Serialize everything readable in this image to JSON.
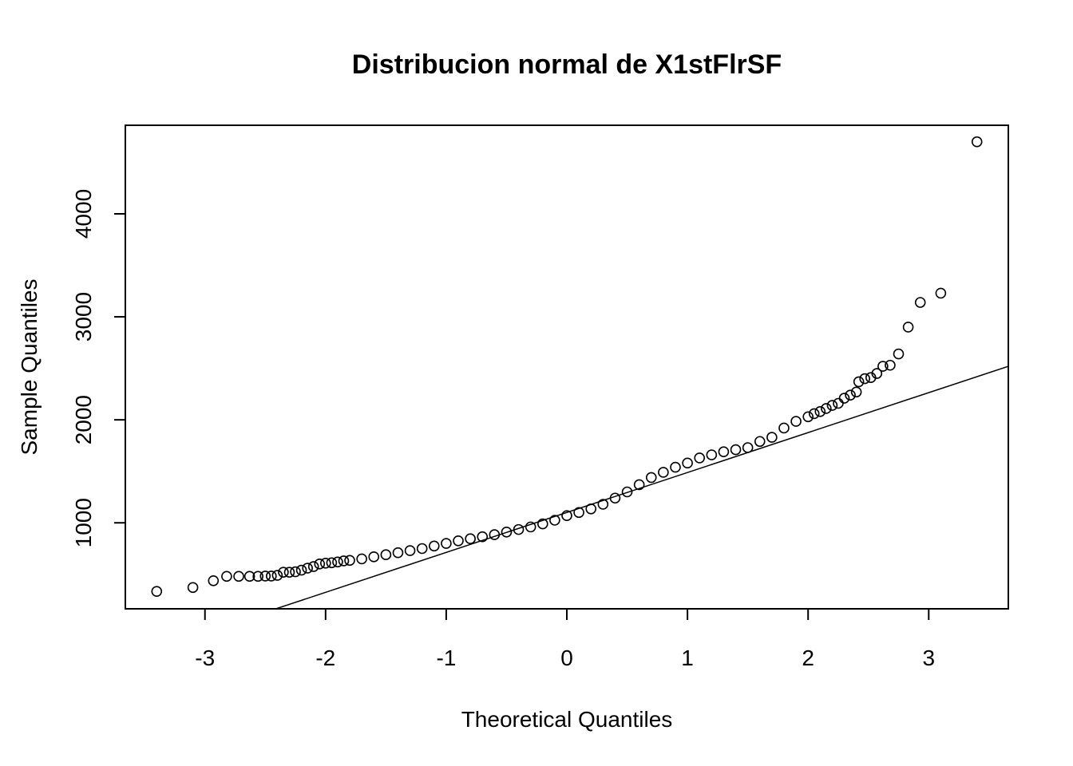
{
  "chart_data": {
    "type": "scatter",
    "title": "Distribucion normal de X1stFlrSF",
    "xlabel": "Theoretical Quantiles",
    "ylabel": "Sample Quantiles",
    "xlim": [
      -3.66,
      3.66
    ],
    "ylim": [
      165,
      4860
    ],
    "x_ticks": [
      -3,
      -2,
      -1,
      0,
      1,
      2,
      3
    ],
    "y_ticks": [
      1000,
      2000,
      3000,
      4000
    ],
    "grid": false,
    "legend": "none",
    "reference_line": {
      "from": [
        -2.58,
        100
      ],
      "to": [
        3.66,
        2520
      ]
    },
    "series": [
      {
        "points": [
          [
            -3.4,
            334
          ],
          [
            -3.1,
            372
          ],
          [
            -2.93,
            438
          ],
          [
            -2.82,
            480
          ],
          [
            -2.72,
            480
          ],
          [
            -2.63,
            480
          ],
          [
            -2.56,
            480
          ],
          [
            -2.5,
            483
          ],
          [
            -2.45,
            483
          ],
          [
            -2.4,
            490
          ],
          [
            -2.35,
            520
          ],
          [
            -2.3,
            520
          ],
          [
            -2.25,
            525
          ],
          [
            -2.2,
            540
          ],
          [
            -2.15,
            560
          ],
          [
            -2.1,
            575
          ],
          [
            -2.05,
            600
          ],
          [
            -2.0,
            608
          ],
          [
            -1.95,
            612
          ],
          [
            -1.9,
            620
          ],
          [
            -1.85,
            630
          ],
          [
            -1.8,
            635
          ],
          [
            -1.7,
            650
          ],
          [
            -1.6,
            670
          ],
          [
            -1.5,
            690
          ],
          [
            -1.4,
            710
          ],
          [
            -1.3,
            730
          ],
          [
            -1.2,
            750
          ],
          [
            -1.1,
            775
          ],
          [
            -1.0,
            800
          ],
          [
            -0.9,
            825
          ],
          [
            -0.8,
            845
          ],
          [
            -0.7,
            865
          ],
          [
            -0.6,
            885
          ],
          [
            -0.5,
            910
          ],
          [
            -0.4,
            935
          ],
          [
            -0.3,
            960
          ],
          [
            -0.2,
            990
          ],
          [
            -0.1,
            1025
          ],
          [
            0.0,
            1070
          ],
          [
            0.1,
            1100
          ],
          [
            0.2,
            1135
          ],
          [
            0.3,
            1180
          ],
          [
            0.4,
            1240
          ],
          [
            0.5,
            1300
          ],
          [
            0.6,
            1370
          ],
          [
            0.7,
            1440
          ],
          [
            0.8,
            1490
          ],
          [
            0.9,
            1540
          ],
          [
            1.0,
            1580
          ],
          [
            1.1,
            1630
          ],
          [
            1.2,
            1660
          ],
          [
            1.3,
            1690
          ],
          [
            1.4,
            1710
          ],
          [
            1.5,
            1730
          ],
          [
            1.6,
            1790
          ],
          [
            1.7,
            1830
          ],
          [
            1.8,
            1920
          ],
          [
            1.9,
            1985
          ],
          [
            2.0,
            2030
          ],
          [
            2.05,
            2060
          ],
          [
            2.1,
            2080
          ],
          [
            2.15,
            2110
          ],
          [
            2.2,
            2140
          ],
          [
            2.25,
            2160
          ],
          [
            2.3,
            2210
          ],
          [
            2.35,
            2240
          ],
          [
            2.4,
            2270
          ],
          [
            2.42,
            2370
          ],
          [
            2.47,
            2400
          ],
          [
            2.52,
            2410
          ],
          [
            2.57,
            2450
          ],
          [
            2.62,
            2520
          ],
          [
            2.68,
            2530
          ],
          [
            2.75,
            2640
          ],
          [
            2.83,
            2900
          ],
          [
            2.93,
            3140
          ],
          [
            3.1,
            3230
          ],
          [
            3.4,
            4700
          ]
        ]
      }
    ]
  }
}
